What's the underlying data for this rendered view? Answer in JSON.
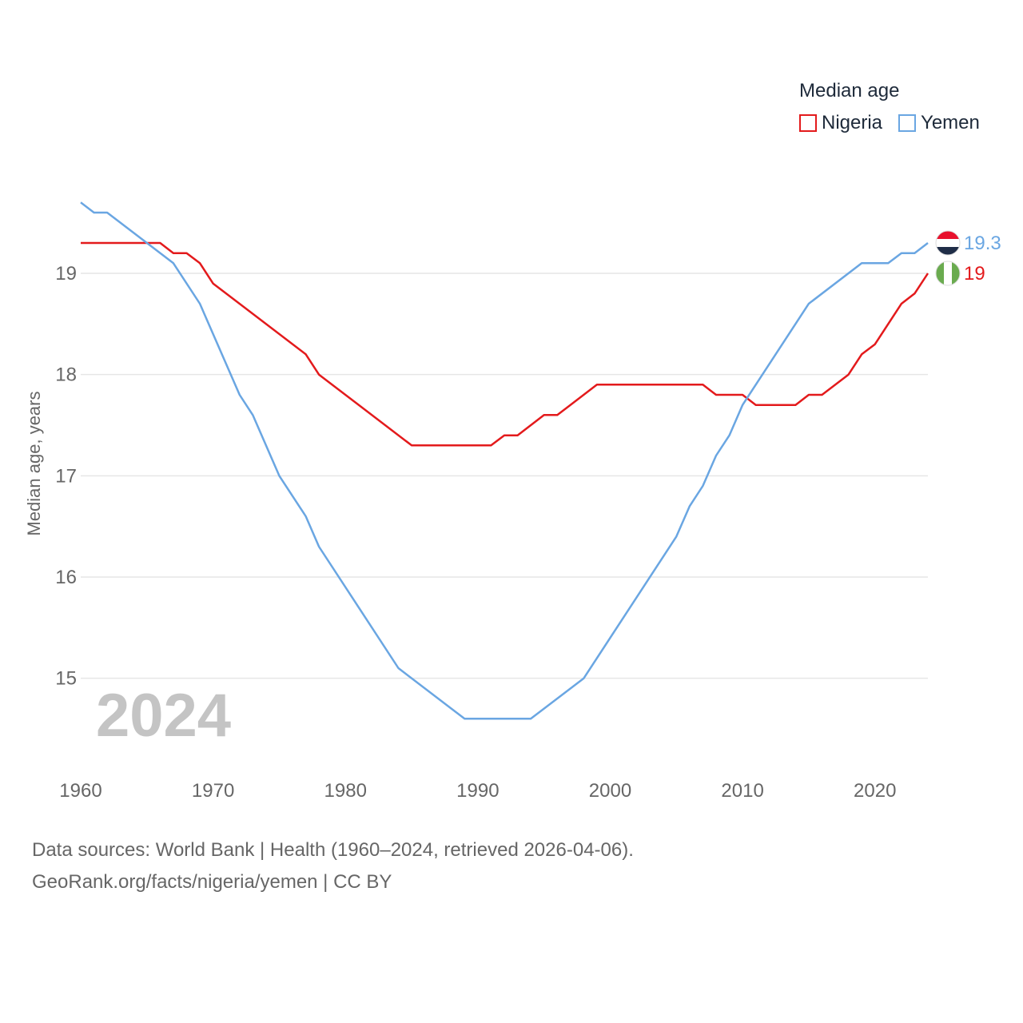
{
  "legend": {
    "title": "Median age",
    "items": [
      {
        "name": "Nigeria",
        "color": "#e31a1c"
      },
      {
        "name": "Yemen",
        "color": "#6aa6e2"
      }
    ]
  },
  "year_label": "2024",
  "footer": {
    "line1": "Data sources: World Bank | Health (1960–2024, retrieved 2026-04-06).",
    "line2": "GeoRank.org/facts/nigeria/yemen | CC BY"
  },
  "chart_data": {
    "type": "line",
    "title": "Median age",
    "xlabel": "",
    "ylabel": "Median age, years",
    "xlim": [
      1960,
      2024
    ],
    "ylim": [
      14.2,
      19.9
    ],
    "xticks": [
      1960,
      1970,
      1980,
      1990,
      2000,
      2010,
      2020
    ],
    "yticks": [
      15,
      16,
      17,
      18,
      19
    ],
    "grid": true,
    "legend_position": "top-right",
    "series": [
      {
        "name": "Nigeria",
        "color": "#e31a1c",
        "end_label": "19",
        "flag": "nigeria-flag",
        "points": [
          [
            1960,
            19.3
          ],
          [
            1966,
            19.3
          ],
          [
            1967,
            19.2
          ],
          [
            1968,
            19.2
          ],
          [
            1969,
            19.1
          ],
          [
            1970,
            18.9
          ],
          [
            1977,
            18.2
          ],
          [
            1978,
            18.0
          ],
          [
            1985,
            17.3
          ],
          [
            1991,
            17.3
          ],
          [
            1992,
            17.4
          ],
          [
            1993,
            17.4
          ],
          [
            1995,
            17.6
          ],
          [
            1996,
            17.6
          ],
          [
            1999,
            17.9
          ],
          [
            2007,
            17.9
          ],
          [
            2008,
            17.8
          ],
          [
            2010,
            17.8
          ],
          [
            2011,
            17.7
          ],
          [
            2014,
            17.7
          ],
          [
            2015,
            17.8
          ],
          [
            2016,
            17.8
          ],
          [
            2018,
            18.0
          ],
          [
            2019,
            18.2
          ],
          [
            2020,
            18.3
          ],
          [
            2022,
            18.7
          ],
          [
            2023,
            18.8
          ],
          [
            2024,
            19.0
          ]
        ]
      },
      {
        "name": "Yemen",
        "color": "#6aa6e2",
        "end_label": "19.3",
        "flag": "yemen-flag",
        "points": [
          [
            1960,
            19.7
          ],
          [
            1961,
            19.6
          ],
          [
            1962,
            19.6
          ],
          [
            1967,
            19.1
          ],
          [
            1969,
            18.7
          ],
          [
            1972,
            17.8
          ],
          [
            1973,
            17.6
          ],
          [
            1975,
            17.0
          ],
          [
            1977,
            16.6
          ],
          [
            1978,
            16.3
          ],
          [
            1984,
            15.1
          ],
          [
            1989,
            14.6
          ],
          [
            1994,
            14.6
          ],
          [
            1998,
            15.0
          ],
          [
            2005,
            16.4
          ],
          [
            2006,
            16.7
          ],
          [
            2007,
            16.9
          ],
          [
            2008,
            17.2
          ],
          [
            2009,
            17.4
          ],
          [
            2010,
            17.7
          ],
          [
            2015,
            18.7
          ],
          [
            2019,
            19.1
          ],
          [
            2021,
            19.1
          ],
          [
            2022,
            19.2
          ],
          [
            2023,
            19.2
          ],
          [
            2024,
            19.3
          ]
        ]
      }
    ]
  }
}
